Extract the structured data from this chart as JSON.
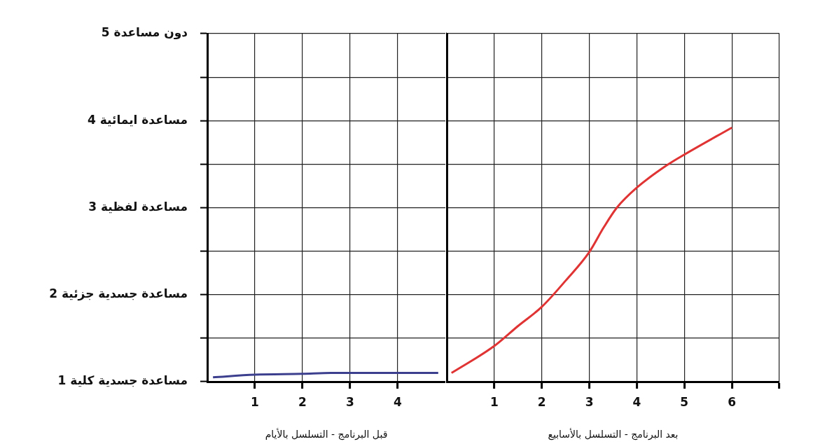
{
  "chart_data": [
    {
      "type": "line",
      "xlabel": "قبل البرنامج - التسلسل بالأيام",
      "xlim": [
        0,
        5
      ],
      "xticks": [
        1,
        2,
        3,
        4
      ],
      "ylim": [
        1,
        5
      ],
      "yticks": [
        {
          "value": 1,
          "label": "1 مساعدة جسدية كلية"
        },
        {
          "value": 1.5,
          "label": null
        },
        {
          "value": 2,
          "label": "2 مساعدة جسدية جزئية"
        },
        {
          "value": 2.5,
          "label": null
        },
        {
          "value": 3,
          "label": "3 مساعدة لفظية"
        },
        {
          "value": 3.5,
          "label": null
        },
        {
          "value": 4,
          "label": "4 مساعدة ايمائية"
        },
        {
          "value": 4.5,
          "label": null
        },
        {
          "value": 5,
          "label": "5 دون مساعدة"
        }
      ],
      "grid": true,
      "marker": "none",
      "line_style": "solid",
      "series": [
        {
          "color": "#3b3f8e",
          "x": [
            0.12,
            1,
            2,
            2.6,
            3,
            4,
            4.85
          ],
          "values": [
            1.05,
            1.08,
            1.09,
            1.1,
            1.1,
            1.1,
            1.1
          ]
        }
      ]
    },
    {
      "type": "line",
      "xlabel": "بعد البرنامج - التسلسل بالأسابيع",
      "xlim": [
        0,
        7
      ],
      "xticks": [
        1,
        2,
        3,
        4,
        5,
        6,
        {
          "value": 7,
          "label": null
        }
      ],
      "ylim": [
        1,
        5
      ],
      "yticks": [
        {
          "value": 1,
          "label": null
        },
        {
          "value": 1.5,
          "label": null
        },
        {
          "value": 2,
          "label": null
        },
        {
          "value": 2.5,
          "label": null
        },
        {
          "value": 3,
          "label": null
        },
        {
          "value": 3.5,
          "label": null
        },
        {
          "value": 4,
          "label": null
        },
        {
          "value": 4.5,
          "label": null
        },
        {
          "value": 5,
          "label": null
        }
      ],
      "grid": true,
      "tick_labels": "x",
      "marker": "none",
      "line_style": "solid",
      "series": [
        {
          "color": "#e03333",
          "x": [
            0.1,
            1,
            1.5,
            2,
            2.5,
            3,
            3.3,
            3.58,
            4,
            4.64,
            5,
            6
          ],
          "values": [
            1.1,
            1.41,
            1.64,
            1.86,
            2.16,
            2.49,
            2.77,
            3.0,
            3.23,
            3.49,
            3.61,
            3.92
          ]
        }
      ]
    }
  ]
}
